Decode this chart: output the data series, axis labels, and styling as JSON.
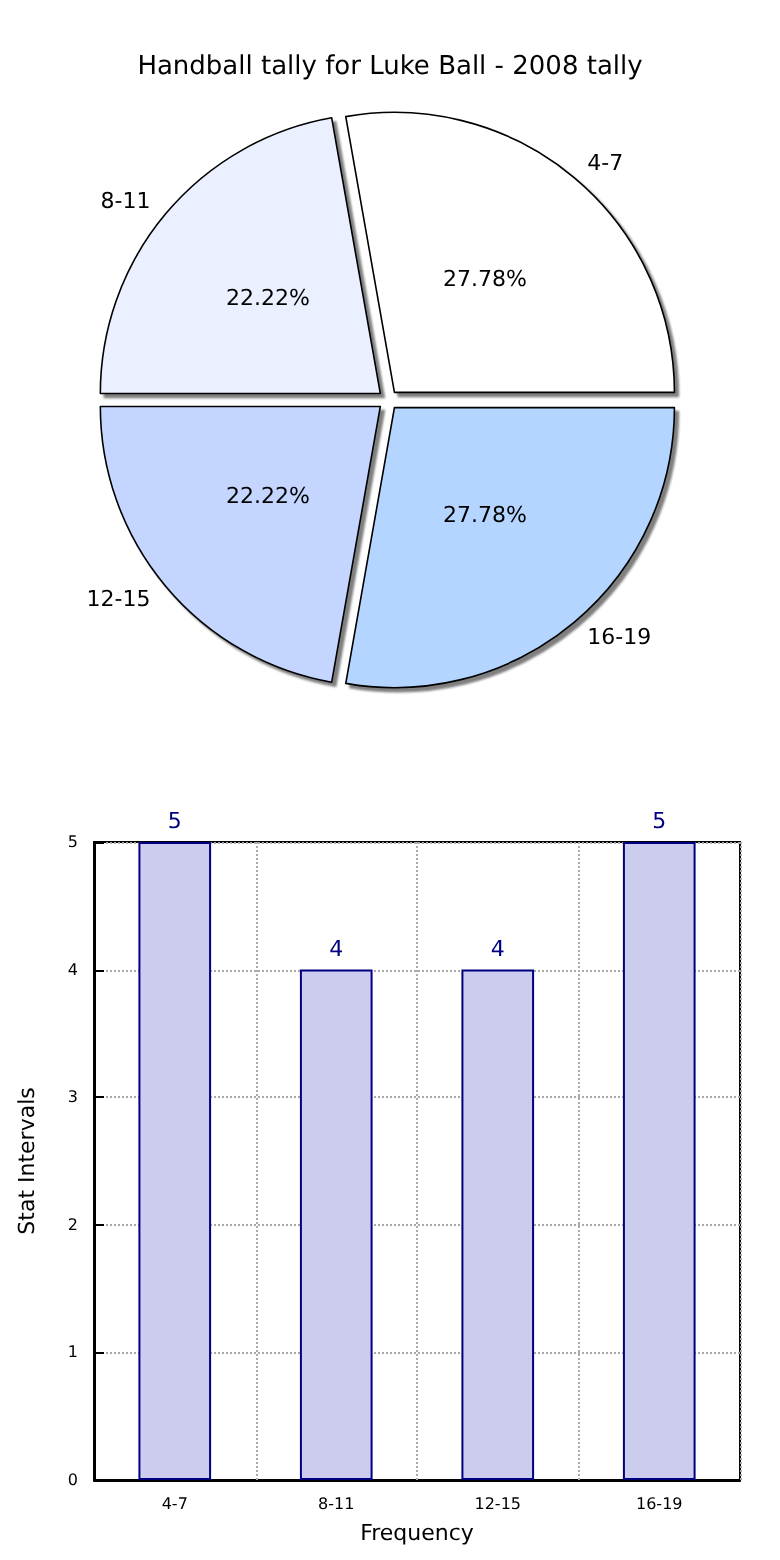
{
  "chart_data": [
    {
      "type": "pie",
      "title": "Handball tally for Luke Ball - 2008 tally",
      "categories": [
        "4-7",
        "8-11",
        "12-15",
        "16-19"
      ],
      "values": [
        27.78,
        22.22,
        22.22,
        27.78
      ],
      "value_labels": [
        "27.78%",
        "22.22%",
        "22.22%",
        "27.78%"
      ],
      "colors": [
        "#ffffff",
        "#eaf0ff",
        "#c4d6ff",
        "#b3d5ff"
      ],
      "legend": false
    },
    {
      "type": "bar",
      "categories": [
        "4-7",
        "8-11",
        "12-15",
        "16-19"
      ],
      "values": [
        5,
        4,
        4,
        5
      ],
      "color": "#ccccee",
      "ylim": [
        0,
        5
      ],
      "yticks": [
        0,
        1,
        2,
        3,
        4,
        5
      ],
      "xlabel": "Frequency",
      "ylabel": "Stat Intervals",
      "grid": true,
      "data_labels": true,
      "legend": false
    }
  ]
}
